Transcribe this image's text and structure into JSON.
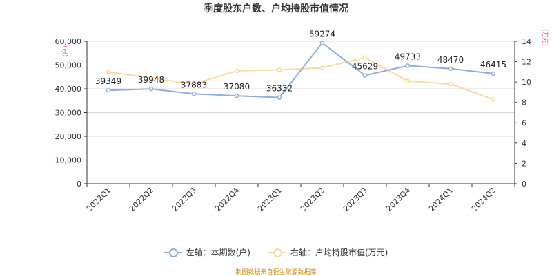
{
  "chart_data": {
    "type": "line",
    "title": "季度股东户数、户均持股市值情况",
    "categories": [
      "2022Q1",
      "2022Q2",
      "2022Q3",
      "2022Q4",
      "2023Q1",
      "2023Q2",
      "2023Q3",
      "2023Q4",
      "2024Q1",
      "2024Q2"
    ],
    "series": [
      {
        "name": "左轴：本期数(户)",
        "axis": "left",
        "color": "#8eaedb",
        "values": [
          39349,
          39948,
          37883,
          37080,
          36332,
          59274,
          45629,
          49733,
          48470,
          46415
        ]
      },
      {
        "name": "右轴：户均持股市值(万元)",
        "axis": "right",
        "color": "#fdd9a0",
        "values": [
          11.0,
          10.4,
          9.8,
          11.1,
          11.2,
          11.4,
          12.4,
          10.1,
          9.8,
          8.3
        ]
      }
    ],
    "yleft": {
      "unit_label": "(户)",
      "ylim": [
        0,
        60000
      ],
      "ticks": [
        "0",
        "10,000",
        "20,000",
        "30,000",
        "40,000",
        "50,000",
        "60,000"
      ],
      "tick_values": [
        0,
        10000,
        20000,
        30000,
        40000,
        50000,
        60000
      ]
    },
    "yright": {
      "unit_label": "(万元)",
      "ylim": [
        0,
        14
      ],
      "ticks": [
        "0",
        "2",
        "4",
        "6",
        "8",
        "10",
        "12",
        "14"
      ],
      "tick_values": [
        0,
        2,
        4,
        6,
        8,
        10,
        12,
        14
      ]
    },
    "grid": true,
    "legend_position": "bottom",
    "data_labels_on": "left"
  },
  "source_text": "制图数据来自恒生聚源数据库"
}
